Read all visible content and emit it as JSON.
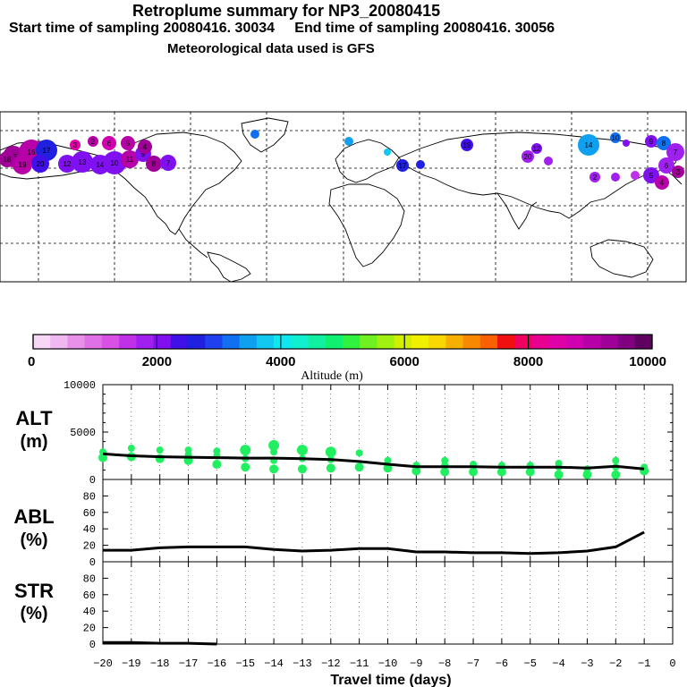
{
  "header": {
    "title": "Retroplume summary for NP3_20080415",
    "sampling_line": "Start time of sampling 20080416. 30034     End time of sampling 20080416. 30056",
    "met_line": "Meteorological data used is GFS"
  },
  "colorbar": {
    "ticks": [
      "0",
      "2000",
      "4000",
      "6000",
      "8000",
      "10000"
    ],
    "label": "Altitude (m)",
    "colors": [
      "#f6d8f6",
      "#f0b8f0",
      "#e890ea",
      "#e070e6",
      "#d850e4",
      "#c030e8",
      "#a020f0",
      "#8010f0",
      "#4010e8",
      "#2020e0",
      "#2040f0",
      "#1070f0",
      "#10a0f0",
      "#10c8f0",
      "#10e8f0",
      "#10f0d0",
      "#10f0a0",
      "#10f070",
      "#30f040",
      "#70f020",
      "#a0f010",
      "#d0f000",
      "#f0f000",
      "#f8d800",
      "#f8b000",
      "#f88800",
      "#f86000",
      "#f01010",
      "#f00060",
      "#e80090",
      "#e000a8",
      "#d000b0",
      "#b800a8",
      "#a00098",
      "#800080",
      "#600060"
    ]
  },
  "map": {
    "marker_labels": [
      "15",
      "16",
      "17",
      "18",
      "19",
      "20",
      "12",
      "13",
      "14",
      "10",
      "11",
      "9",
      "8",
      "7",
      "6",
      "5",
      "4",
      "3",
      "2",
      "1"
    ]
  },
  "panels": {
    "alt": {
      "name": "ALT",
      "unit": "(m)",
      "ticks": [
        "0",
        "5000",
        "10000"
      ]
    },
    "abl": {
      "name": "ABL",
      "unit": "(%)",
      "ticks": [
        "0",
        "20",
        "40",
        "60",
        "80"
      ]
    },
    "str": {
      "name": "STR",
      "unit": "(%)",
      "ticks": [
        "0",
        "20",
        "40",
        "60",
        "80"
      ]
    }
  },
  "xaxis": {
    "ticks": [
      "−20",
      "−19",
      "−18",
      "−17",
      "−16",
      "−15",
      "−14",
      "−13",
      "−12",
      "−11",
      "−10",
      "−9",
      "−8",
      "−7",
      "−6",
      "−5",
      "−4",
      "−3",
      "−2",
      "−1",
      "0"
    ],
    "label": "Travel time (days)"
  },
  "chart_data": [
    {
      "type": "line",
      "panel": "ALT",
      "ylabel": "ALT (m)",
      "xlabel": "Travel time (days)",
      "xlim": [
        -20,
        0
      ],
      "ylim": [
        0,
        10000
      ],
      "x": [
        -20,
        -19,
        -18,
        -17,
        -16,
        -15,
        -14,
        -13,
        -12,
        -11,
        -10,
        -9,
        -8,
        -7,
        -6,
        -5,
        -4,
        -3,
        -2,
        -1
      ],
      "series": [
        {
          "name": "mean altitude",
          "values": [
            2700,
            2500,
            2400,
            2350,
            2300,
            2250,
            2250,
            2200,
            2100,
            1900,
            1600,
            1350,
            1350,
            1350,
            1300,
            1300,
            1300,
            1200,
            1400,
            1100
          ]
        }
      ],
      "clusters": [
        {
          "x": -20,
          "y": [
            2300,
            2900
          ]
        },
        {
          "x": -19,
          "y": [
            2400,
            3300
          ]
        },
        {
          "x": -18,
          "y": [
            2200,
            3100
          ]
        },
        {
          "x": -17,
          "y": [
            2000,
            2600,
            3100
          ]
        },
        {
          "x": -16,
          "y": [
            1600,
            2500,
            3000
          ]
        },
        {
          "x": -15,
          "y": [
            1300,
            2200,
            3100
          ]
        },
        {
          "x": -14,
          "y": [
            1100,
            2000,
            2900,
            3600
          ]
        },
        {
          "x": -13,
          "y": [
            1100,
            2200,
            3100
          ]
        },
        {
          "x": -12,
          "y": [
            1200,
            2100,
            2900
          ]
        },
        {
          "x": -11,
          "y": [
            1300,
            2800
          ]
        },
        {
          "x": -10,
          "y": [
            1200,
            2000
          ]
        },
        {
          "x": -9,
          "y": [
            900,
            1500
          ]
        },
        {
          "x": -8,
          "y": [
            800,
            1500,
            2000
          ]
        },
        {
          "x": -7,
          "y": [
            800,
            1600
          ]
        },
        {
          "x": -6,
          "y": [
            800,
            1500
          ]
        },
        {
          "x": -5,
          "y": [
            800,
            1500
          ]
        },
        {
          "x": -4,
          "y": [
            500,
            1300,
            1700
          ]
        },
        {
          "x": -3,
          "y": [
            500,
            1100
          ]
        },
        {
          "x": -2,
          "y": [
            500,
            1300,
            2000
          ]
        },
        {
          "x": -1,
          "y": [
            900,
            1300
          ]
        }
      ]
    },
    {
      "type": "line",
      "panel": "ABL",
      "ylabel": "ABL (%)",
      "xlim": [
        -20,
        0
      ],
      "ylim": [
        0,
        100
      ],
      "x": [
        -20,
        -19,
        -18,
        -17,
        -16,
        -15,
        -14,
        -13,
        -12,
        -11,
        -10,
        -9,
        -8,
        -7,
        -6,
        -5,
        -4,
        -3,
        -2,
        -1
      ],
      "series": [
        {
          "name": "ABL fraction",
          "values": [
            14,
            14,
            17,
            18,
            18,
            18,
            15,
            13,
            14,
            16,
            16,
            12,
            12,
            11,
            11,
            10,
            11,
            13,
            18,
            36
          ]
        }
      ]
    },
    {
      "type": "line",
      "panel": "STR",
      "ylabel": "STR (%)",
      "xlim": [
        -20,
        0
      ],
      "ylim": [
        0,
        100
      ],
      "x": [
        -20,
        -19,
        -18,
        -17,
        -16
      ],
      "series": [
        {
          "name": "stratospheric fraction",
          "values": [
            2,
            2,
            1,
            1,
            0
          ]
        }
      ]
    }
  ]
}
